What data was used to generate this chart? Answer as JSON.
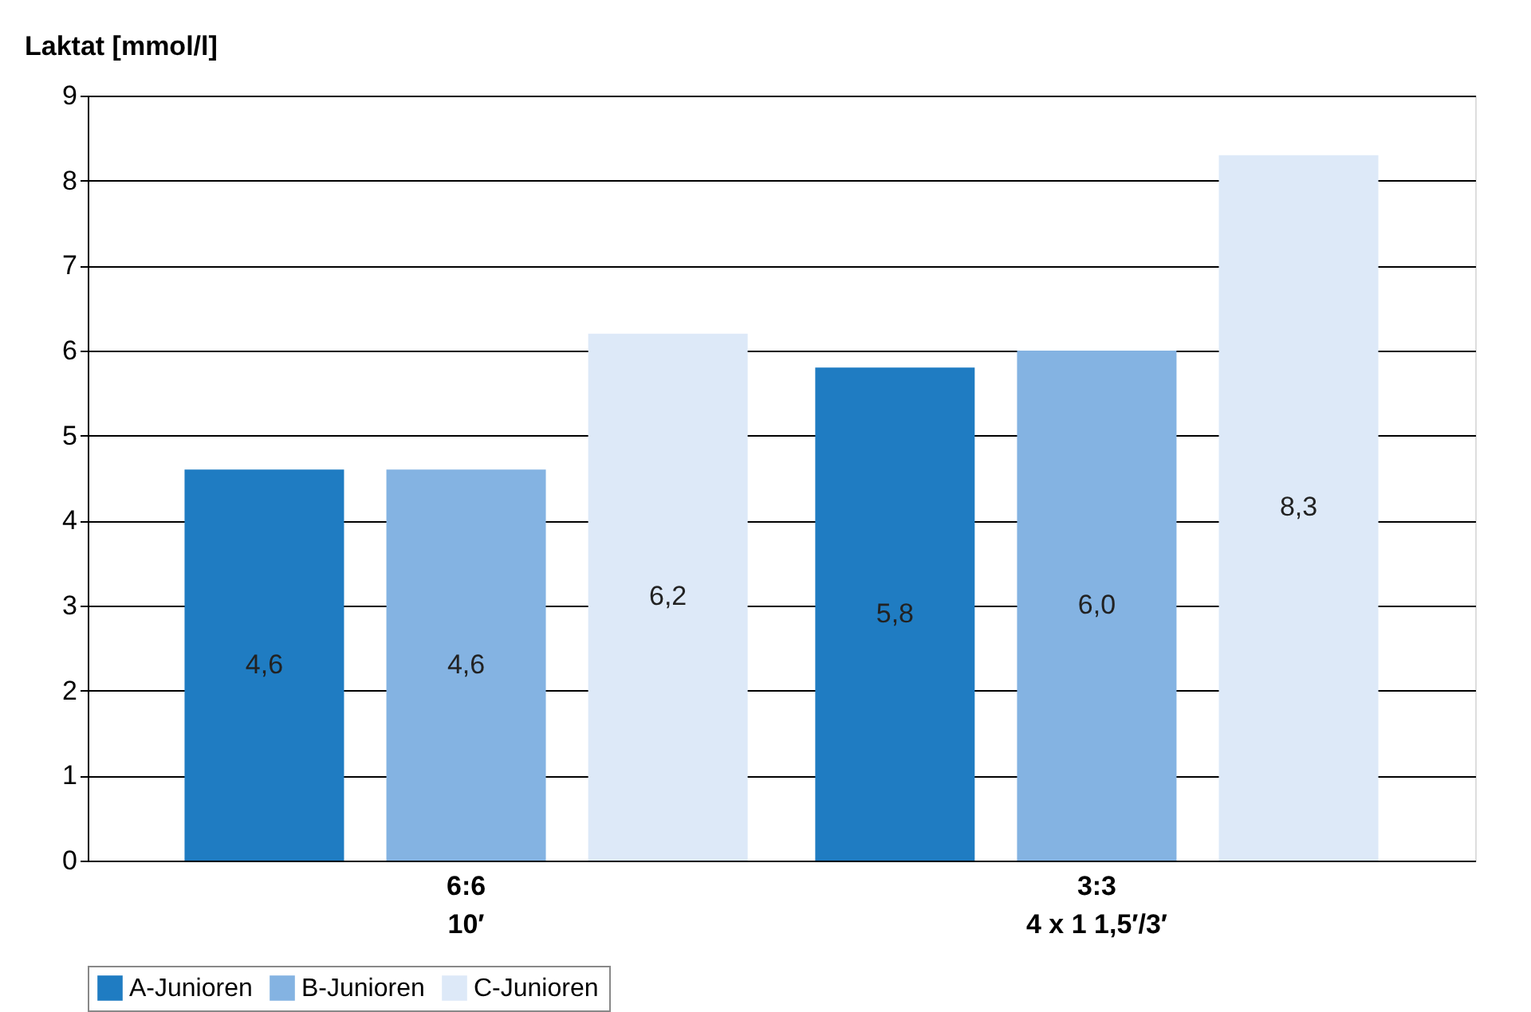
{
  "chart_data": {
    "type": "bar",
    "ylabel": "Laktat [mmol/l]",
    "categories": [
      "6:6\n10′",
      "3:3\n4 x 1 1,5′/3′"
    ],
    "series": [
      {
        "name": "A-Junioren",
        "color": "#1f7cc2",
        "values": [
          4.6,
          5.8
        ],
        "value_labels": [
          "4,6",
          "5,8"
        ]
      },
      {
        "name": "B-Junioren",
        "color": "#84b3e2",
        "values": [
          4.6,
          6.0
        ],
        "value_labels": [
          "4,6",
          "6,0"
        ]
      },
      {
        "name": "C-Junioren",
        "color": "#dde9f8",
        "values": [
          6.2,
          8.3
        ],
        "value_labels": [
          "6,2",
          "8,3"
        ]
      }
    ],
    "ylim": [
      0,
      9
    ],
    "yticks": [
      0,
      1,
      2,
      3,
      4,
      5,
      6,
      7,
      8,
      9
    ],
    "grid": "y",
    "legend": "bottom"
  }
}
